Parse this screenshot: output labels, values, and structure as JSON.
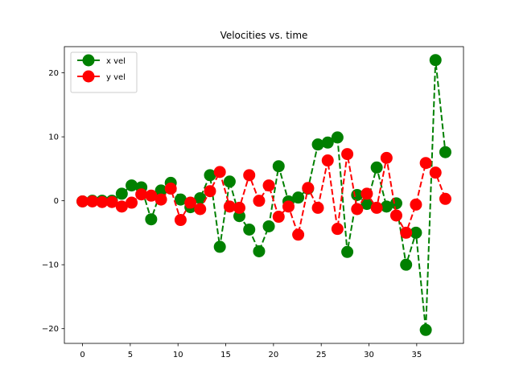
{
  "chart_data": {
    "type": "line",
    "title": "Velocities vs. time",
    "x": [
      0,
      1.03,
      2.05,
      3.08,
      4.11,
      5.14,
      6.16,
      7.19,
      8.22,
      9.24,
      10.27,
      11.3,
      12.32,
      13.35,
      14.38,
      15.41,
      16.43,
      17.46,
      18.49,
      19.51,
      20.54,
      21.57,
      22.59,
      23.62,
      24.65,
      25.68,
      26.7,
      27.73,
      28.76,
      29.78,
      30.81,
      31.84,
      32.86,
      33.89,
      34.92,
      35.95,
      36.97,
      38
    ],
    "series": [
      {
        "name": "x vel",
        "color": "#008000",
        "values": [
          -0.1,
          0,
          0,
          0,
          1.1,
          2.4,
          2.1,
          -2.9,
          1.6,
          2.8,
          0.2,
          -1.0,
          0.4,
          4.0,
          -7.2,
          3.0,
          -2.4,
          -4.5,
          -7.9,
          -4.0,
          5.4,
          -0.1,
          0.5,
          1.9,
          8.8,
          9.1,
          9.9,
          -8.0,
          0.9,
          -0.5,
          5.2,
          -0.9,
          -0.4,
          -10.0,
          -5.0,
          -20.2,
          22,
          7.6
        ]
      },
      {
        "name": "y vel",
        "color": "#ff0000",
        "values": [
          -0.1,
          -0.1,
          -0.2,
          -0.2,
          -0.9,
          -0.3,
          1.0,
          0.8,
          0.2,
          1.9,
          -3.0,
          -0.3,
          -1.3,
          1.5,
          4.5,
          -0.9,
          -1.1,
          4.0,
          0.0,
          2.4,
          -2.5,
          -0.9,
          -5.3,
          2.0,
          -1.1,
          6.3,
          -4.4,
          7.3,
          -1.3,
          1.1,
          -1.1,
          6.7,
          -2.3,
          -5.0,
          -0.6,
          5.9,
          4.4,
          0.3
        ]
      }
    ],
    "xlim": [
      -1.9,
      39.9
    ],
    "xticks": [
      0,
      5,
      10,
      15,
      20,
      25,
      30,
      35
    ],
    "ylim": [
      -22.3,
      24.1
    ],
    "yticks": [
      {
        "value": -20,
        "label": "−20"
      },
      {
        "value": -10,
        "label": "−10"
      },
      0,
      10,
      20
    ],
    "grid": false,
    "legend": "upper left",
    "line_style": "dashed"
  }
}
